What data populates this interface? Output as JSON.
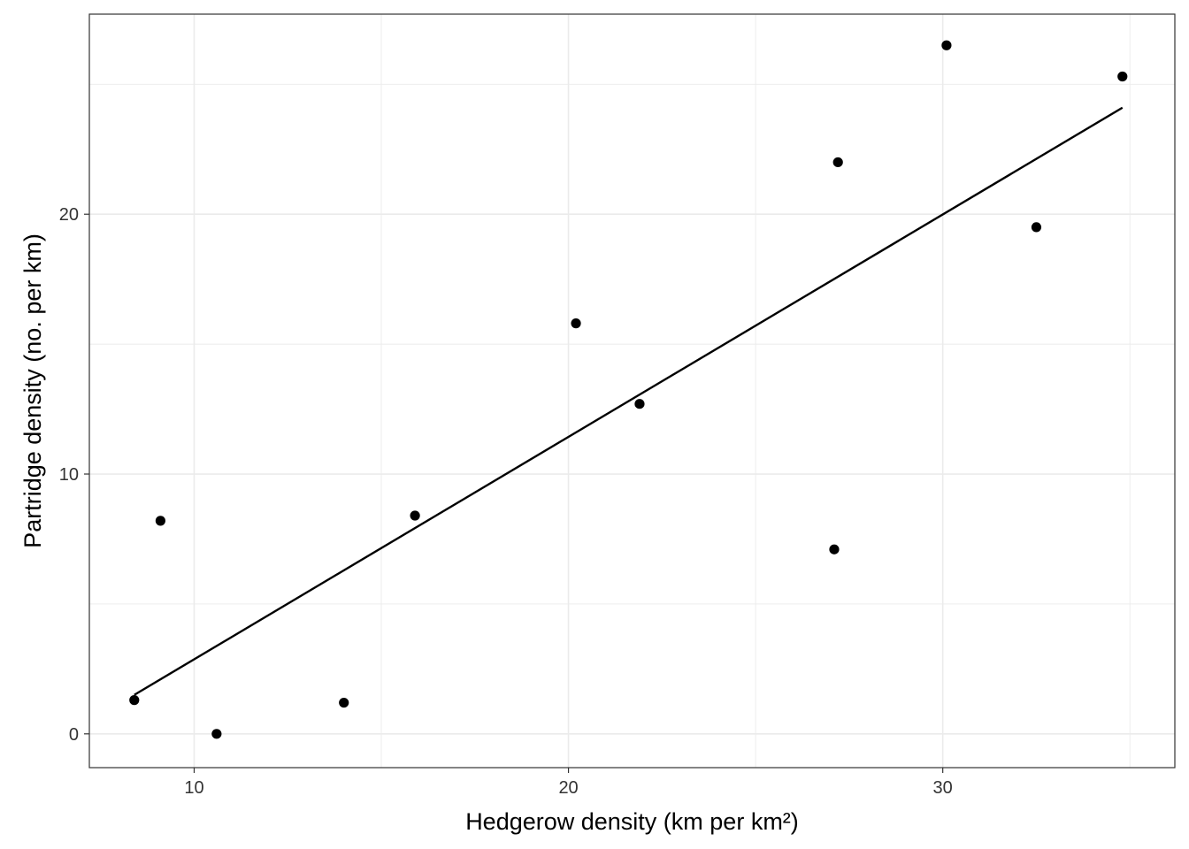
{
  "chart_data": {
    "type": "scatter",
    "title": "",
    "xlabel": "Hedgerow density (km per km²)",
    "ylabel": "Partridge density (no. per km)",
    "xlim": [
      7.2,
      36.2
    ],
    "ylim": [
      -1.3,
      27.7
    ],
    "x_ticks": [
      10,
      20,
      30
    ],
    "y_ticks": [
      0,
      10,
      20
    ],
    "x_tick_labels": [
      "10",
      "20",
      "30"
    ],
    "y_tick_labels": [
      "0",
      "10",
      "20"
    ],
    "grid": true,
    "series": [
      {
        "points": [
          {
            "x": 8.4,
            "y": 1.3
          },
          {
            "x": 9.1,
            "y": 8.2
          },
          {
            "x": 10.6,
            "y": 0.0
          },
          {
            "x": 14.0,
            "y": 1.2
          },
          {
            "x": 15.9,
            "y": 8.4
          },
          {
            "x": 20.2,
            "y": 15.8
          },
          {
            "x": 21.9,
            "y": 12.7
          },
          {
            "x": 27.1,
            "y": 7.1
          },
          {
            "x": 27.2,
            "y": 22.0
          },
          {
            "x": 30.1,
            "y": 26.5
          },
          {
            "x": 32.5,
            "y": 19.5
          },
          {
            "x": 34.8,
            "y": 25.3
          }
        ]
      }
    ],
    "fit_line": {
      "x": [
        8.4,
        34.8
      ],
      "y": [
        1.5,
        24.1
      ]
    },
    "colors": {
      "points": "#000000",
      "line": "#000000",
      "grid": "#ebebeb",
      "border": "#333333"
    }
  }
}
